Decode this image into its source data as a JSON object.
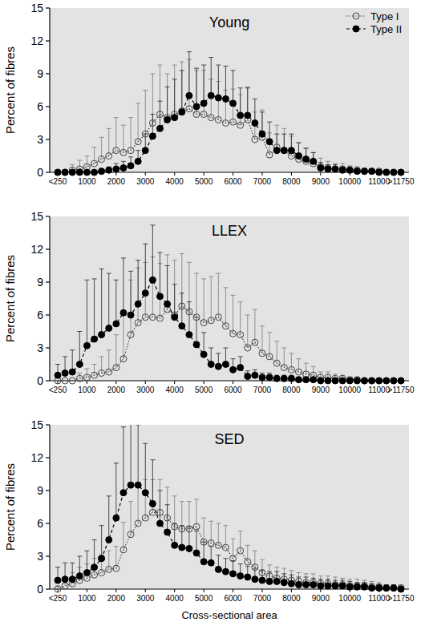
{
  "chart_data": [
    {
      "type": "line",
      "title": "Young",
      "y_label": "Percent of fibres",
      "categories": [
        "<250",
        null,
        null,
        null,
        "1000",
        null,
        null,
        null,
        "2000",
        null,
        null,
        null,
        "3000",
        null,
        null,
        null,
        "4000",
        null,
        null,
        null,
        "5000",
        null,
        null,
        null,
        "6000",
        null,
        null,
        null,
        "7000",
        null,
        null,
        null,
        "8000",
        null,
        null,
        null,
        "9000",
        null,
        null,
        null,
        "10000",
        null,
        null,
        null,
        "11000",
        null,
        null,
        ">11750"
      ],
      "series": [
        {
          "name": "Type I",
          "color": "#444444",
          "marker": "open-circle",
          "line_style": "dotted",
          "values": [
            0,
            0,
            0.2,
            0.3,
            0.5,
            0.8,
            1.2,
            1.5,
            2.0,
            1.8,
            2.0,
            2.8,
            3.5,
            4.5,
            5.3,
            5.0,
            5.3,
            5.6,
            5.8,
            5.3,
            5.3,
            5.0,
            4.8,
            4.5,
            4.6,
            4.3,
            4.8,
            3.0,
            3.2,
            1.6,
            2.3,
            2.0,
            1.5,
            1.2,
            1.0,
            0.8,
            0.5,
            0.4,
            0.3,
            0.3,
            0.2,
            0.2,
            0.1,
            0.1,
            0.1,
            0,
            0,
            0
          ],
          "errors": [
            0,
            0.2,
            0.5,
            0.8,
            1,
            1.5,
            2,
            2.5,
            3,
            2.5,
            3,
            3.5,
            4,
            4.5,
            4.5,
            4,
            4.5,
            4.5,
            4.5,
            4,
            4,
            3.5,
            3.5,
            3,
            3,
            2.8,
            3,
            2.5,
            2.5,
            2,
            2,
            2,
            1.8,
            1.5,
            1.2,
            1,
            0.8,
            0.6,
            0.5,
            0.5,
            0.4,
            0.3,
            0.3,
            0.2,
            0.2,
            0,
            0,
            0
          ]
        },
        {
          "name": "Type II",
          "color": "#000000",
          "marker": "circle",
          "line_style": "dashed",
          "values": [
            0,
            0,
            0,
            0,
            0,
            0,
            0.1,
            0.2,
            0.3,
            0.4,
            0.6,
            1.0,
            2.0,
            3.3,
            4.0,
            4.8,
            5.0,
            5.5,
            7.0,
            6.0,
            6.3,
            7.0,
            6.8,
            6.7,
            6.3,
            5.2,
            5.2,
            4.5,
            3.5,
            2.8,
            2.0,
            2.0,
            2.0,
            1.5,
            1.2,
            1.0,
            0.4,
            0.3,
            0.3,
            0.2,
            0.2,
            0.1,
            0.1,
            0.1,
            0,
            0,
            0,
            0
          ],
          "errors": [
            0,
            0,
            0,
            0,
            0,
            0,
            0.2,
            0.3,
            0.5,
            0.6,
            0.8,
            1,
            1.5,
            2,
            2.5,
            3,
            3.5,
            3.8,
            4,
            3.5,
            3.5,
            3.5,
            3,
            3,
            3,
            2.5,
            2.5,
            2.2,
            2,
            1.8,
            1.5,
            1.5,
            1.5,
            1.2,
            1,
            0.8,
            0.5,
            0.4,
            0.4,
            0.3,
            0.3,
            0.2,
            0.2,
            0.2,
            0,
            0,
            0,
            0
          ]
        }
      ],
      "ylim": [
        0,
        15
      ],
      "yticks": [
        0,
        3,
        6,
        9,
        12,
        15
      ],
      "grid": false,
      "legend": "top-right"
    },
    {
      "type": "line",
      "title": "LLEX",
      "y_label": "Percent of fibres",
      "categories": [
        "<250",
        null,
        null,
        null,
        "1000",
        null,
        null,
        null,
        "2000",
        null,
        null,
        null,
        "3000",
        null,
        null,
        null,
        "4000",
        null,
        null,
        null,
        "5000",
        null,
        null,
        null,
        "6000",
        null,
        null,
        null,
        "7000",
        null,
        null,
        null,
        "8000",
        null,
        null,
        null,
        "9000",
        null,
        null,
        null,
        "10000",
        null,
        null,
        null,
        "11000",
        null,
        null,
        ">11750"
      ],
      "series": [
        {
          "name": "Type I",
          "color": "#444444",
          "marker": "open-circle",
          "line_style": "dotted",
          "values": [
            0,
            0,
            0,
            0.2,
            0.3,
            0.5,
            0.7,
            0.8,
            1.2,
            2.0,
            4.2,
            5.3,
            5.8,
            5.8,
            5.7,
            6.5,
            6.0,
            6.8,
            6.3,
            5.8,
            5.3,
            5.5,
            5.8,
            5.0,
            4.3,
            4.2,
            3.0,
            3.5,
            2.5,
            2.2,
            1.6,
            1.2,
            1.0,
            0.8,
            0.6,
            0.5,
            0.3,
            0.3,
            0.2,
            0.2,
            0.1,
            0.1,
            0,
            0,
            0,
            0,
            0,
            0
          ],
          "errors": [
            0,
            0,
            0,
            0.5,
            0.8,
            1,
            1.5,
            2,
            3,
            4,
            5,
            5,
            5,
            5.5,
            5,
            5,
            5,
            4.8,
            4.5,
            4,
            4,
            4,
            4,
            3.5,
            3.5,
            3,
            3,
            3,
            2.5,
            2.2,
            2,
            1.8,
            1.5,
            1.2,
            1,
            0.8,
            0.5,
            0.5,
            0.4,
            0.3,
            0.2,
            0.2,
            0,
            0,
            0,
            0,
            0,
            0
          ]
        },
        {
          "name": "Type II",
          "color": "#000000",
          "marker": "circle",
          "line_style": "dashed",
          "values": [
            0.5,
            0.7,
            0.8,
            1.5,
            3.2,
            3.8,
            4.2,
            4.8,
            5.2,
            6.2,
            6.0,
            7.0,
            8.0,
            9.2,
            7.7,
            7.0,
            5.8,
            5.0,
            4.2,
            3.3,
            2.4,
            1.5,
            1.3,
            1.5,
            1.0,
            1.2,
            0.4,
            0.5,
            0.3,
            0.3,
            0.2,
            0.2,
            0.2,
            0.1,
            0.1,
            0.1,
            0,
            0,
            0,
            0,
            0,
            0,
            0,
            0,
            0,
            0,
            0,
            0
          ],
          "errors": [
            1,
            1.5,
            2,
            3,
            6,
            5.5,
            6,
            5,
            4,
            5,
            4,
            4,
            4.5,
            5,
            4,
            3.5,
            3,
            3,
            3,
            2.5,
            2,
            1.5,
            1.2,
            1.5,
            1,
            1,
            0.5,
            0.5,
            0.4,
            0.4,
            0.3,
            0.3,
            0.3,
            0.2,
            0.2,
            0.2,
            0,
            0,
            0,
            0,
            0,
            0,
            0,
            0,
            0,
            0,
            0,
            0
          ]
        }
      ],
      "ylim": [
        0,
        15
      ],
      "yticks": [
        0,
        3,
        6,
        9,
        12,
        15
      ],
      "grid": false
    },
    {
      "type": "line",
      "title": "SED",
      "y_label": "Percent of fibres",
      "x_label": "Cross-sectional area",
      "categories": [
        "<250",
        null,
        null,
        null,
        "1000",
        null,
        null,
        null,
        "2000",
        null,
        null,
        null,
        "3000",
        null,
        null,
        null,
        "4000",
        null,
        null,
        null,
        "5000",
        null,
        null,
        null,
        "6000",
        null,
        null,
        null,
        "7000",
        null,
        null,
        null,
        "8000",
        null,
        null,
        null,
        "9000",
        null,
        null,
        null,
        "10000",
        null,
        null,
        null,
        "11000",
        null,
        null,
        ">11750"
      ],
      "series": [
        {
          "name": "Type I",
          "color": "#444444",
          "marker": "open-circle",
          "line_style": "dotted",
          "values": [
            0,
            0.3,
            0.5,
            0.8,
            1.0,
            1.3,
            1.5,
            1.8,
            1.9,
            3.6,
            5.0,
            6.0,
            6.5,
            7.0,
            7.0,
            6.5,
            5.7,
            5.5,
            5.5,
            5.7,
            4.3,
            4.2,
            4.0,
            3.8,
            2.8,
            3.5,
            2.5,
            2.0,
            1.5,
            1.2,
            1.0,
            0.9,
            0.8,
            0.7,
            0.6,
            0.6,
            0.5,
            0.5,
            0.4,
            0.4,
            0.3,
            0.3,
            0.3,
            0.2,
            0.2,
            0.1,
            0.1,
            0.1
          ],
          "errors": [
            0.3,
            0.8,
            1,
            1.2,
            1.3,
            1.5,
            1.6,
            1.7,
            2,
            2.5,
            3,
            3.5,
            3.5,
            3,
            3,
            2.8,
            2.8,
            2.5,
            2.5,
            2.5,
            2.2,
            2,
            2,
            2,
            1.8,
            1.8,
            1.5,
            1.5,
            1.2,
            1,
            1,
            1,
            0.9,
            0.8,
            0.8,
            0.8,
            0.7,
            0.7,
            0.7,
            0.6,
            0.6,
            0.6,
            0.5,
            0.5,
            0.4,
            0.3,
            0.3,
            0.3
          ]
        },
        {
          "name": "Type II",
          "color": "#000000",
          "marker": "circle",
          "line_style": "dashed",
          "values": [
            0.8,
            0.9,
            0.9,
            1.2,
            1.5,
            2.0,
            2.8,
            4.5,
            6.5,
            8.8,
            9.5,
            9.5,
            8.8,
            7.8,
            6.0,
            5.2,
            4.0,
            3.8,
            3.7,
            3.3,
            2.5,
            2.4,
            1.8,
            1.6,
            1.4,
            1.2,
            1.1,
            0.9,
            0.8,
            0.7,
            0.7,
            0.6,
            0.5,
            0.4,
            0.4,
            0.4,
            0.3,
            0.3,
            0.3,
            0.3,
            0.2,
            0.2,
            0.2,
            0.1,
            0.1,
            0.1,
            0.1,
            0
          ],
          "errors": [
            1.2,
            1.5,
            1.5,
            1.8,
            2,
            2.5,
            3,
            4,
            5,
            6,
            5.8,
            5.5,
            4.5,
            4,
            3,
            2.5,
            2,
            2,
            2,
            2,
            1.8,
            1.5,
            1.3,
            1.2,
            1.2,
            1.1,
            1,
            1,
            0.9,
            0.9,
            0.9,
            0.8,
            0.8,
            0.7,
            0.7,
            0.6,
            0.6,
            0.6,
            0.5,
            0.5,
            0.5,
            0.4,
            0.4,
            0.4,
            0.3,
            0.3,
            0.3,
            0.2
          ]
        }
      ],
      "ylim": [
        0,
        15
      ],
      "yticks": [
        0,
        3,
        6,
        9,
        12,
        15
      ],
      "grid": false
    }
  ]
}
